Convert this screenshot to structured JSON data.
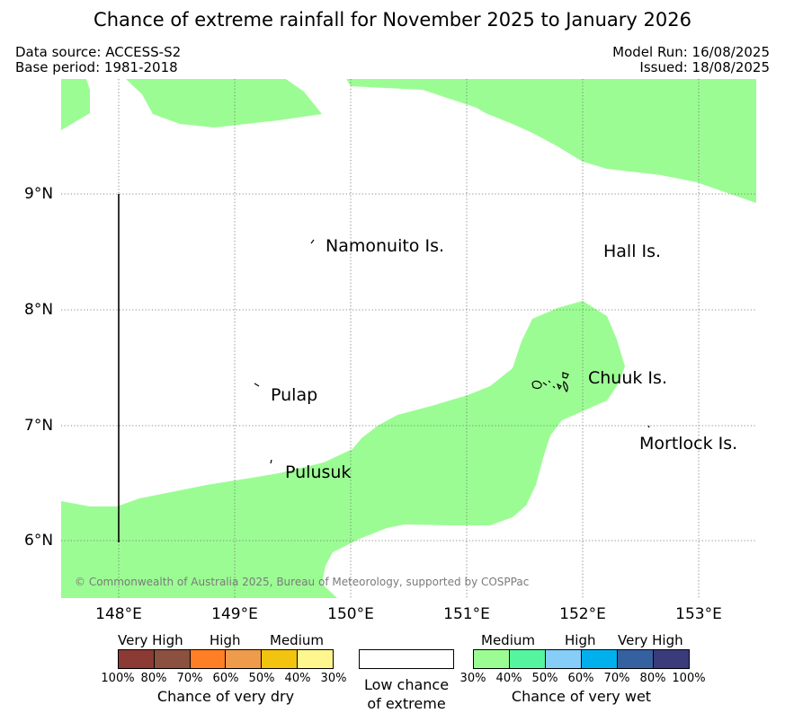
{
  "title": "Chance of extreme rainfall for November 2025 to January 2026",
  "data_source": "Data source: ACCESS-S2",
  "base_period": "Base period: 1981-2018",
  "model_run": "Model Run: 16/08/2025",
  "issued": "Issued: 18/08/2025",
  "copyright": "© Commonwealth of Australia 2025, Bureau of Meteorology, supported by COSPPac",
  "y_ticks": [
    "9°N",
    "8°N",
    "7°N",
    "6°N"
  ],
  "x_ticks": [
    "148°E",
    "149°E",
    "150°E",
    "151°E",
    "152°E",
    "153°E"
  ],
  "places": {
    "namonuito": "Namonuito Is.",
    "hall": "Hall Is.",
    "chuuk": "Chuuk Is.",
    "pulap": "Pulap",
    "mortlock": "Mortlock Is.",
    "pulusuk": "Pulusuk"
  },
  "colors": {
    "wet_30_40": "#9cfc94",
    "wet_40_50": "#55f59f",
    "wet_50_60": "#86cdf8",
    "wet_60_70": "#00b0ed",
    "wet_70_80": "#3661a1",
    "wet_80_100": "#3a3b7a",
    "dry_100_80": "#8b3a34",
    "dry_80_70": "#8b5040",
    "dry_70_60": "#ff7f27",
    "dry_60_50": "#ee9b4b",
    "dry_50_40": "#f2c30f",
    "dry_40_30": "#fff68f"
  },
  "dry_legend": {
    "categories": [
      "Very High",
      "High",
      "Medium"
    ],
    "ticks": [
      "100%",
      "80%",
      "70%",
      "60%",
      "50%",
      "40%",
      "30%"
    ],
    "label": "Chance of very dry"
  },
  "low_legend": {
    "line1": "Low chance",
    "line2": "of extreme"
  },
  "wet_legend": {
    "categories": [
      "Medium",
      "High",
      "Very High"
    ],
    "ticks": [
      "30%",
      "40%",
      "50%",
      "60%",
      "70%",
      "80%",
      "100%"
    ],
    "label": "Chance of very wet"
  }
}
